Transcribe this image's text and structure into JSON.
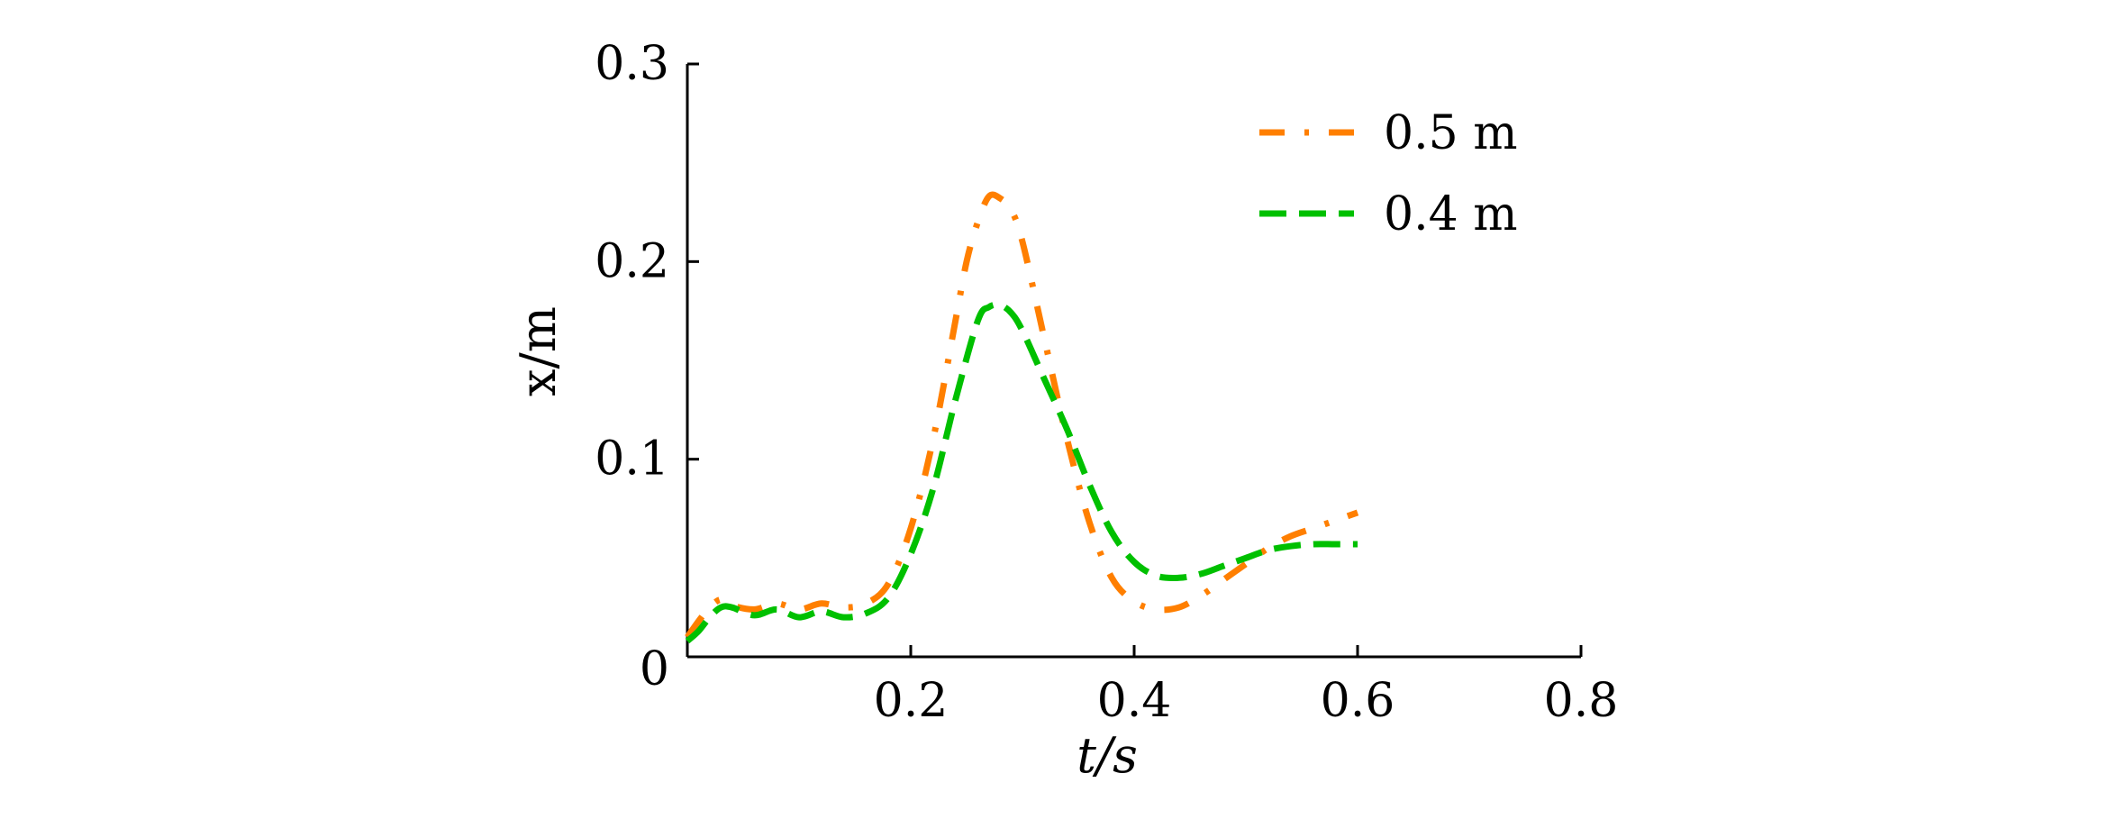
{
  "chart_data": {
    "type": "line",
    "xlabel": "t/s",
    "ylabel": "x/m",
    "xlim": [
      0,
      0.8
    ],
    "ylim": [
      0,
      0.3
    ],
    "x_ticks": [
      0.2,
      0.4,
      0.6,
      0.8
    ],
    "x_tick_labels": [
      "0.2",
      "0.4",
      "0.6",
      "0.8"
    ],
    "y_ticks": [
      0,
      0.1,
      0.2,
      0.3
    ],
    "y_tick_labels": [
      "0",
      "0.1",
      "0.2",
      "0.3"
    ],
    "legend_position": "top-right",
    "series": [
      {
        "name": "0.5 m",
        "color": "#ff7f00",
        "dash": "dash-dot",
        "x": [
          0.0,
          0.01,
          0.02,
          0.03,
          0.04,
          0.06,
          0.08,
          0.1,
          0.12,
          0.14,
          0.16,
          0.18,
          0.2,
          0.22,
          0.24,
          0.25,
          0.26,
          0.27,
          0.28,
          0.29,
          0.3,
          0.32,
          0.34,
          0.36,
          0.38,
          0.4,
          0.42,
          0.44,
          0.46,
          0.48,
          0.5,
          0.52,
          0.54,
          0.56,
          0.58,
          0.6
        ],
        "y": [
          0.01,
          0.018,
          0.025,
          0.029,
          0.026,
          0.024,
          0.027,
          0.024,
          0.027,
          0.025,
          0.027,
          0.037,
          0.065,
          0.11,
          0.17,
          0.2,
          0.22,
          0.233,
          0.232,
          0.226,
          0.21,
          0.16,
          0.11,
          0.068,
          0.04,
          0.028,
          0.024,
          0.025,
          0.031,
          0.039,
          0.047,
          0.055,
          0.061,
          0.065,
          0.069,
          0.073
        ]
      },
      {
        "name": "0.4 m",
        "color": "#00c000",
        "dash": "dashed",
        "x": [
          0.0,
          0.01,
          0.02,
          0.03,
          0.04,
          0.06,
          0.08,
          0.1,
          0.12,
          0.14,
          0.16,
          0.18,
          0.2,
          0.22,
          0.24,
          0.26,
          0.27,
          0.28,
          0.29,
          0.3,
          0.32,
          0.34,
          0.36,
          0.38,
          0.4,
          0.42,
          0.44,
          0.46,
          0.48,
          0.5,
          0.52,
          0.54,
          0.56,
          0.58,
          0.6
        ],
        "y": [
          0.008,
          0.013,
          0.02,
          0.025,
          0.025,
          0.021,
          0.024,
          0.02,
          0.023,
          0.02,
          0.022,
          0.03,
          0.052,
          0.085,
          0.13,
          0.17,
          0.177,
          0.178,
          0.174,
          0.165,
          0.14,
          0.115,
          0.087,
          0.063,
          0.048,
          0.041,
          0.04,
          0.042,
          0.046,
          0.05,
          0.054,
          0.056,
          0.057,
          0.057,
          0.057
        ]
      }
    ]
  }
}
